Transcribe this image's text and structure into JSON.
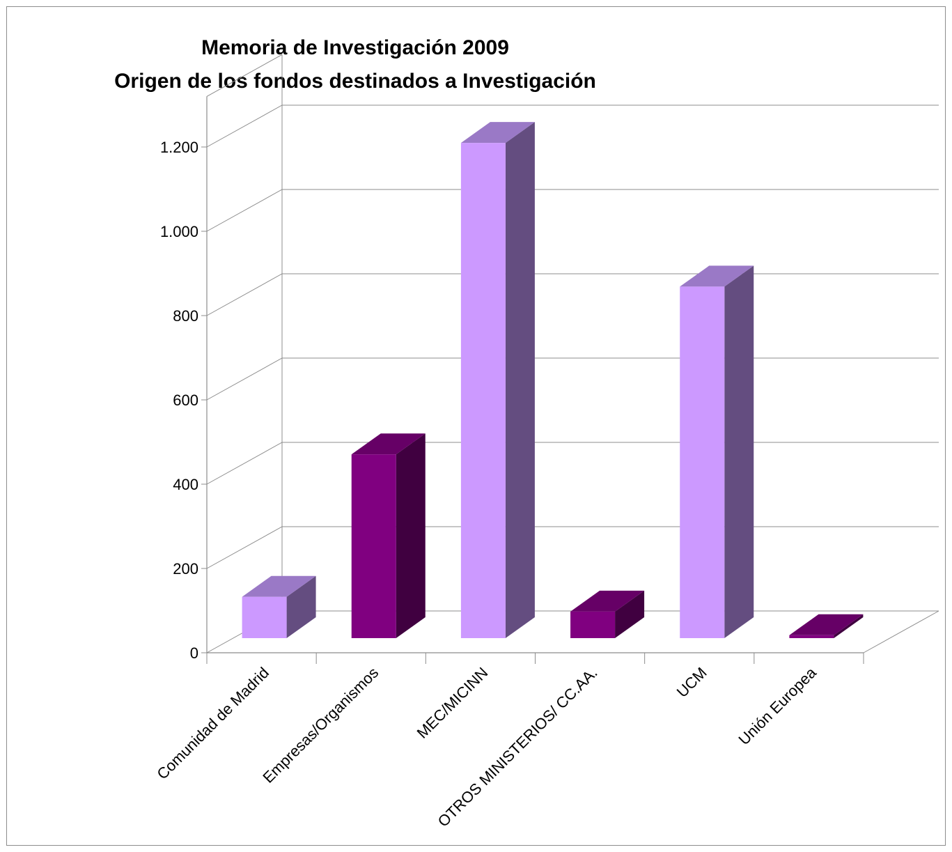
{
  "chart_data": {
    "type": "bar",
    "title": "Memoria de Investigación 2009",
    "subtitle": "Origen de los fondos destinados a Investigación",
    "xlabel": "",
    "ylabel": "",
    "categories": [
      "Comunidad de Madrid",
      "Empresas/Organismos",
      "MEC/MICINN",
      "OTROS MINISTERIOS/ CC.AA.",
      "UCM",
      "Unión Europea"
    ],
    "values": [
      98,
      436,
      1175,
      63,
      834,
      7
    ],
    "ylim": [
      0,
      1200
    ],
    "yticks": [
      0,
      200,
      400,
      600,
      800,
      1000,
      1200
    ],
    "ytick_labels": [
      "0",
      "200",
      "400",
      "600",
      "800",
      "1.000",
      "1.200"
    ],
    "grid": true,
    "legend": "none",
    "style": "3d-column",
    "colors": {
      "light_front": "#cc99ff",
      "light_top": "#9a79c6",
      "light_side": "#644d80",
      "dark_front": "#800080",
      "dark_top": "#660066",
      "dark_side": "#400040",
      "gridline": "#8c8c8c"
    }
  }
}
